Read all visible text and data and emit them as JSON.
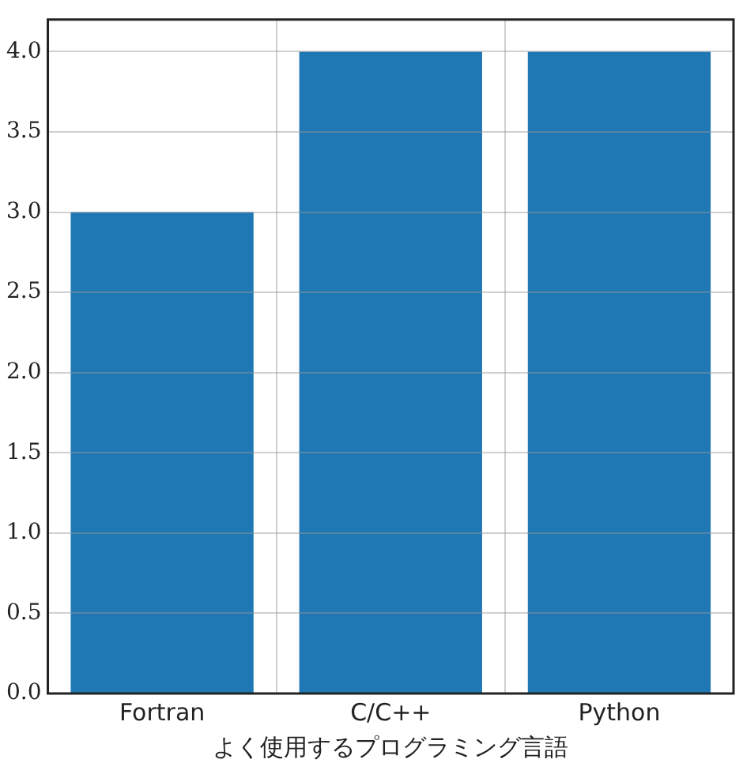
{
  "chart_data": {
    "type": "bar",
    "xlabel": "よく使用するプログラミング言語",
    "categories": [
      "Fortran",
      "C/C++",
      "Python"
    ],
    "values": [
      3,
      4,
      4
    ],
    "color": "#1f77b4",
    "ylim": [
      0,
      4.2
    ],
    "yticks": [
      {
        "value": 0,
        "label": "0.0"
      },
      0.5,
      {
        "value": 1,
        "label": "1.0"
      },
      1.5,
      {
        "value": 2,
        "label": "2.0"
      },
      2.5,
      {
        "value": 3,
        "label": "3.0"
      },
      3.5,
      {
        "value": 4,
        "label": "4.0"
      }
    ],
    "grid": true
  }
}
